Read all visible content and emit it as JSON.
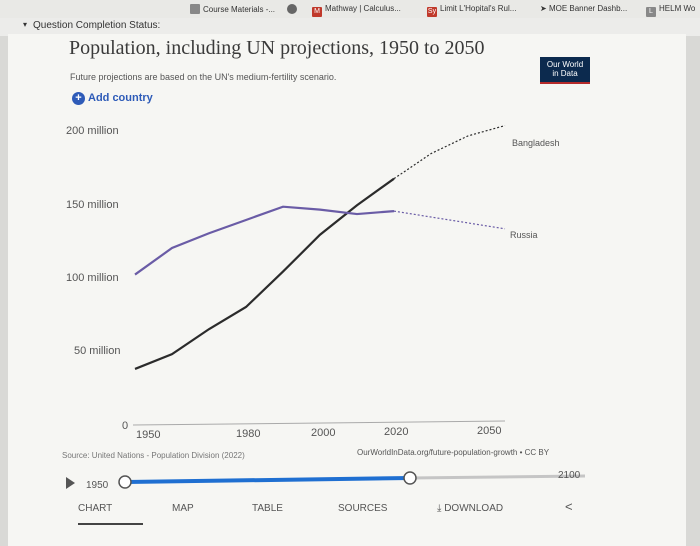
{
  "bookmarks": [
    {
      "label": "Course Materials -...",
      "icon": "folder-icon",
      "color": "#888888"
    },
    {
      "label": "",
      "icon": "openai-icon",
      "color": "#666666"
    },
    {
      "label": "Mathway | Calculus...",
      "icon": "mathway-icon",
      "color": "#c0392b"
    },
    {
      "label": "Limit L'Hopital's Rul...",
      "icon": "symbolab-icon",
      "color": "#c0392b"
    },
    {
      "label": "MOE Banner Dashb...",
      "icon": "moe-icon",
      "color": "#333333"
    },
    {
      "label": "HELM Wo",
      "icon": "helm-icon",
      "color": "#888888"
    }
  ],
  "status": {
    "label": "Question Completion Status:"
  },
  "chart": {
    "title": "Population, including UN projections, 1950 to 2050",
    "subtitle": "Future projections are based on the UN's medium-fertility scenario.",
    "logo_line1": "Our World",
    "logo_line2": "in Data",
    "add_country": "Add country",
    "source": "Source: United Nations - Population Division (2022)",
    "url": "OurWorldInData.org/future-population-growth • CC BY"
  },
  "timeline": {
    "start": "1950",
    "end": "2100"
  },
  "tabs": {
    "chart": "CHART",
    "map": "MAP",
    "table": "TABLE",
    "sources": "SOURCES",
    "download": "DOWNLOAD"
  },
  "chart_data": {
    "type": "line",
    "title": "Population, including UN projections, 1950 to 2050",
    "ylabel": "",
    "xlabel": "",
    "x_ticks": [
      "1950",
      "1980",
      "2000",
      "2020",
      "2050"
    ],
    "y_ticks": [
      "0",
      "50 million",
      "100 million",
      "150 million",
      "200 million"
    ],
    "ylim": [
      0,
      200
    ],
    "projection_start": 2022,
    "series": [
      {
        "name": "Bangladesh",
        "color": "#2b2b2b",
        "points": [
          [
            1950,
            38
          ],
          [
            1960,
            48
          ],
          [
            1970,
            65
          ],
          [
            1980,
            80
          ],
          [
            1990,
            104
          ],
          [
            2000,
            129
          ],
          [
            2010,
            149
          ],
          [
            2020,
            167
          ],
          [
            2030,
            184
          ],
          [
            2040,
            196
          ],
          [
            2050,
            203
          ]
        ]
      },
      {
        "name": "Russia",
        "color": "#6a5ca6",
        "points": [
          [
            1950,
            102
          ],
          [
            1960,
            120
          ],
          [
            1970,
            130
          ],
          [
            1980,
            139
          ],
          [
            1990,
            148
          ],
          [
            2000,
            146
          ],
          [
            2010,
            143
          ],
          [
            2020,
            145
          ],
          [
            2030,
            141
          ],
          [
            2040,
            137
          ],
          [
            2050,
            133
          ]
        ]
      }
    ]
  }
}
